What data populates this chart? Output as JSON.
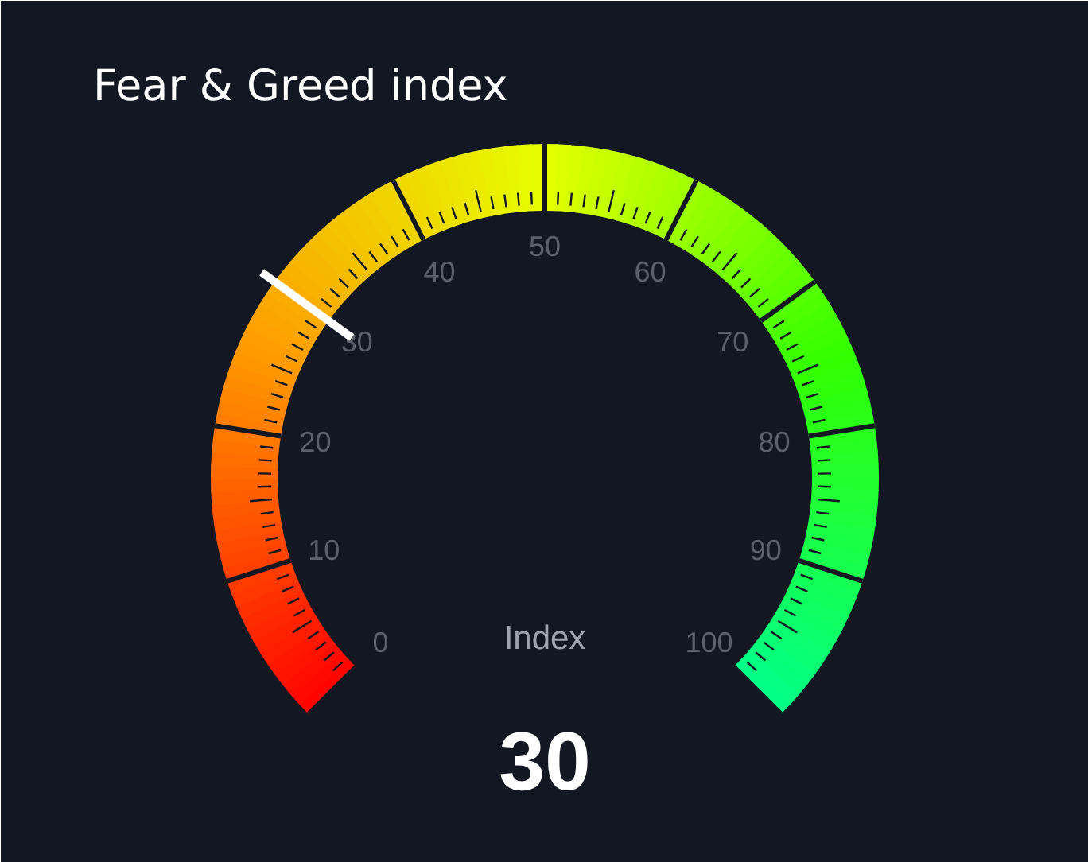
{
  "chart_data": {
    "type": "other",
    "title": "Fear & Greed index",
    "xlabel": "Index",
    "values": [
      30
    ],
    "data_labels": true,
    "annotations": [
      "0",
      "10",
      "20",
      "30",
      "40",
      "50",
      "60",
      "70",
      "80",
      "90",
      "100"
    ]
  }
}
